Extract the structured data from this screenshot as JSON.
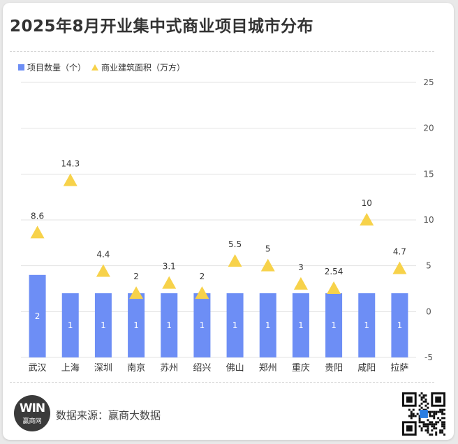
{
  "title": "2025年8月开业集中式商业项目城市分布",
  "legend": {
    "bar": "项目数量（个）",
    "marker": "商业建筑面积（万方）"
  },
  "chart_data": {
    "type": "bar",
    "categories": [
      "武汉",
      "上海",
      "深圳",
      "南京",
      "苏州",
      "绍兴",
      "佛山",
      "郑州",
      "重庆",
      "贵阳",
      "咸阳",
      "拉萨"
    ],
    "series": [
      {
        "name": "项目数量（个）",
        "type": "bar",
        "values": [
          2,
          1,
          1,
          1,
          1,
          1,
          1,
          1,
          1,
          1,
          1,
          1
        ],
        "labels": [
          "2",
          "1",
          "1",
          "1",
          "1",
          "1",
          "1",
          "1",
          "1",
          "1",
          "1",
          "1"
        ],
        "axis": "left"
      },
      {
        "name": "商业建筑面积（万方）",
        "type": "scatter",
        "values": [
          8.6,
          14.3,
          4.4,
          2,
          3.1,
          2,
          5.5,
          5,
          3,
          2.54,
          10,
          4.7
        ],
        "labels": [
          "8.6",
          "14.3",
          "4.4",
          "2",
          "3.1",
          "2",
          "5.5",
          "5",
          "3",
          "2.54",
          "10",
          "4.7"
        ],
        "axis": "right"
      }
    ],
    "left_axis": {
      "range": [
        0,
        5
      ],
      "ticks": []
    },
    "right_axis": {
      "range": [
        -5,
        25
      ],
      "ticks": [
        25,
        20,
        15,
        10,
        5,
        0,
        -5
      ]
    },
    "grid": true,
    "legend_position": "top-left",
    "colors": {
      "bar": "#6d8ef5",
      "marker": "#f7d24a",
      "bar_label": "#ffffff",
      "grid": "#e3e3e3"
    }
  },
  "footer": {
    "logo_mark": "WIN",
    "logo_name": "赢商网",
    "source": "数据来源：赢商大数据"
  }
}
